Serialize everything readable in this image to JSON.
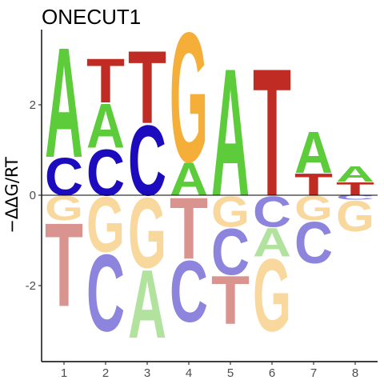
{
  "chart_data": {
    "type": "sequence-logo",
    "title": "ONECUT1",
    "xlabel": "",
    "ylabel": "−ΔΔG/RT",
    "x_ticks": [
      "1",
      "2",
      "3",
      "4",
      "5",
      "6",
      "7",
      "8"
    ],
    "y_ticks": [
      "-2",
      "0",
      "2"
    ],
    "ylim": [
      -3.6,
      3.6
    ],
    "colors": {
      "A": "#5ccc3a",
      "C": "#1d0cbf",
      "G": "#f5ae37",
      "T": "#c02c23"
    },
    "faded_colors": {
      "A": "#b1e39e",
      "C": "#8d84de",
      "G": "#f9d89e",
      "T": "#d99490"
    },
    "positions": [
      {
        "pos": "1",
        "above": [
          {
            "base": "C",
            "height": 0.85
          },
          {
            "base": "A",
            "height": 2.5
          }
        ],
        "below": [
          {
            "base": "G",
            "height": 0.55
          },
          {
            "base": "T",
            "height": 1.9
          }
        ]
      },
      {
        "pos": "2",
        "above": [
          {
            "base": "C",
            "height": 1.05
          },
          {
            "base": "A",
            "height": 1.0
          },
          {
            "base": "T",
            "height": 1.0
          }
        ],
        "below": [
          {
            "base": "G",
            "height": 1.25
          },
          {
            "base": "C",
            "height": 1.75
          }
        ]
      },
      {
        "pos": "3",
        "above": [
          {
            "base": "C",
            "height": 1.6
          },
          {
            "base": "T",
            "height": 1.65
          }
        ],
        "below": [
          {
            "base": "G",
            "height": 1.6
          },
          {
            "base": "A",
            "height": 1.55
          }
        ]
      },
      {
        "pos": "4",
        "above": [
          {
            "base": "A",
            "height": 0.75
          },
          {
            "base": "G",
            "height": 2.95
          }
        ],
        "below": [
          {
            "base": "T",
            "height": 1.4
          },
          {
            "base": "C",
            "height": 1.4
          }
        ]
      },
      {
        "pos": "5",
        "above": [
          {
            "base": "A",
            "height": 2.9
          }
        ],
        "below": [
          {
            "base": "G",
            "height": 0.7
          },
          {
            "base": "C",
            "height": 1.05
          },
          {
            "base": "T",
            "height": 1.1
          }
        ]
      },
      {
        "pos": "6",
        "above": [
          {
            "base": "T",
            "height": 2.9
          }
        ],
        "below": [
          {
            "base": "C",
            "height": 0.7
          },
          {
            "base": "A",
            "height": 0.65
          },
          {
            "base": "G",
            "height": 1.65
          }
        ]
      },
      {
        "pos": "7",
        "above": [
          {
            "base": "T",
            "height": 0.5
          },
          {
            "base": "A",
            "height": 0.95
          }
        ],
        "below": [
          {
            "base": "G",
            "height": 0.55
          },
          {
            "base": "C",
            "height": 0.95
          }
        ]
      },
      {
        "pos": "8",
        "above": [
          {
            "base": "T",
            "height": 0.3
          },
          {
            "base": "A",
            "height": 0.35
          }
        ],
        "below": [
          {
            "base": "C",
            "height": 0.1
          },
          {
            "base": "G",
            "height": 0.7
          }
        ]
      }
    ]
  }
}
